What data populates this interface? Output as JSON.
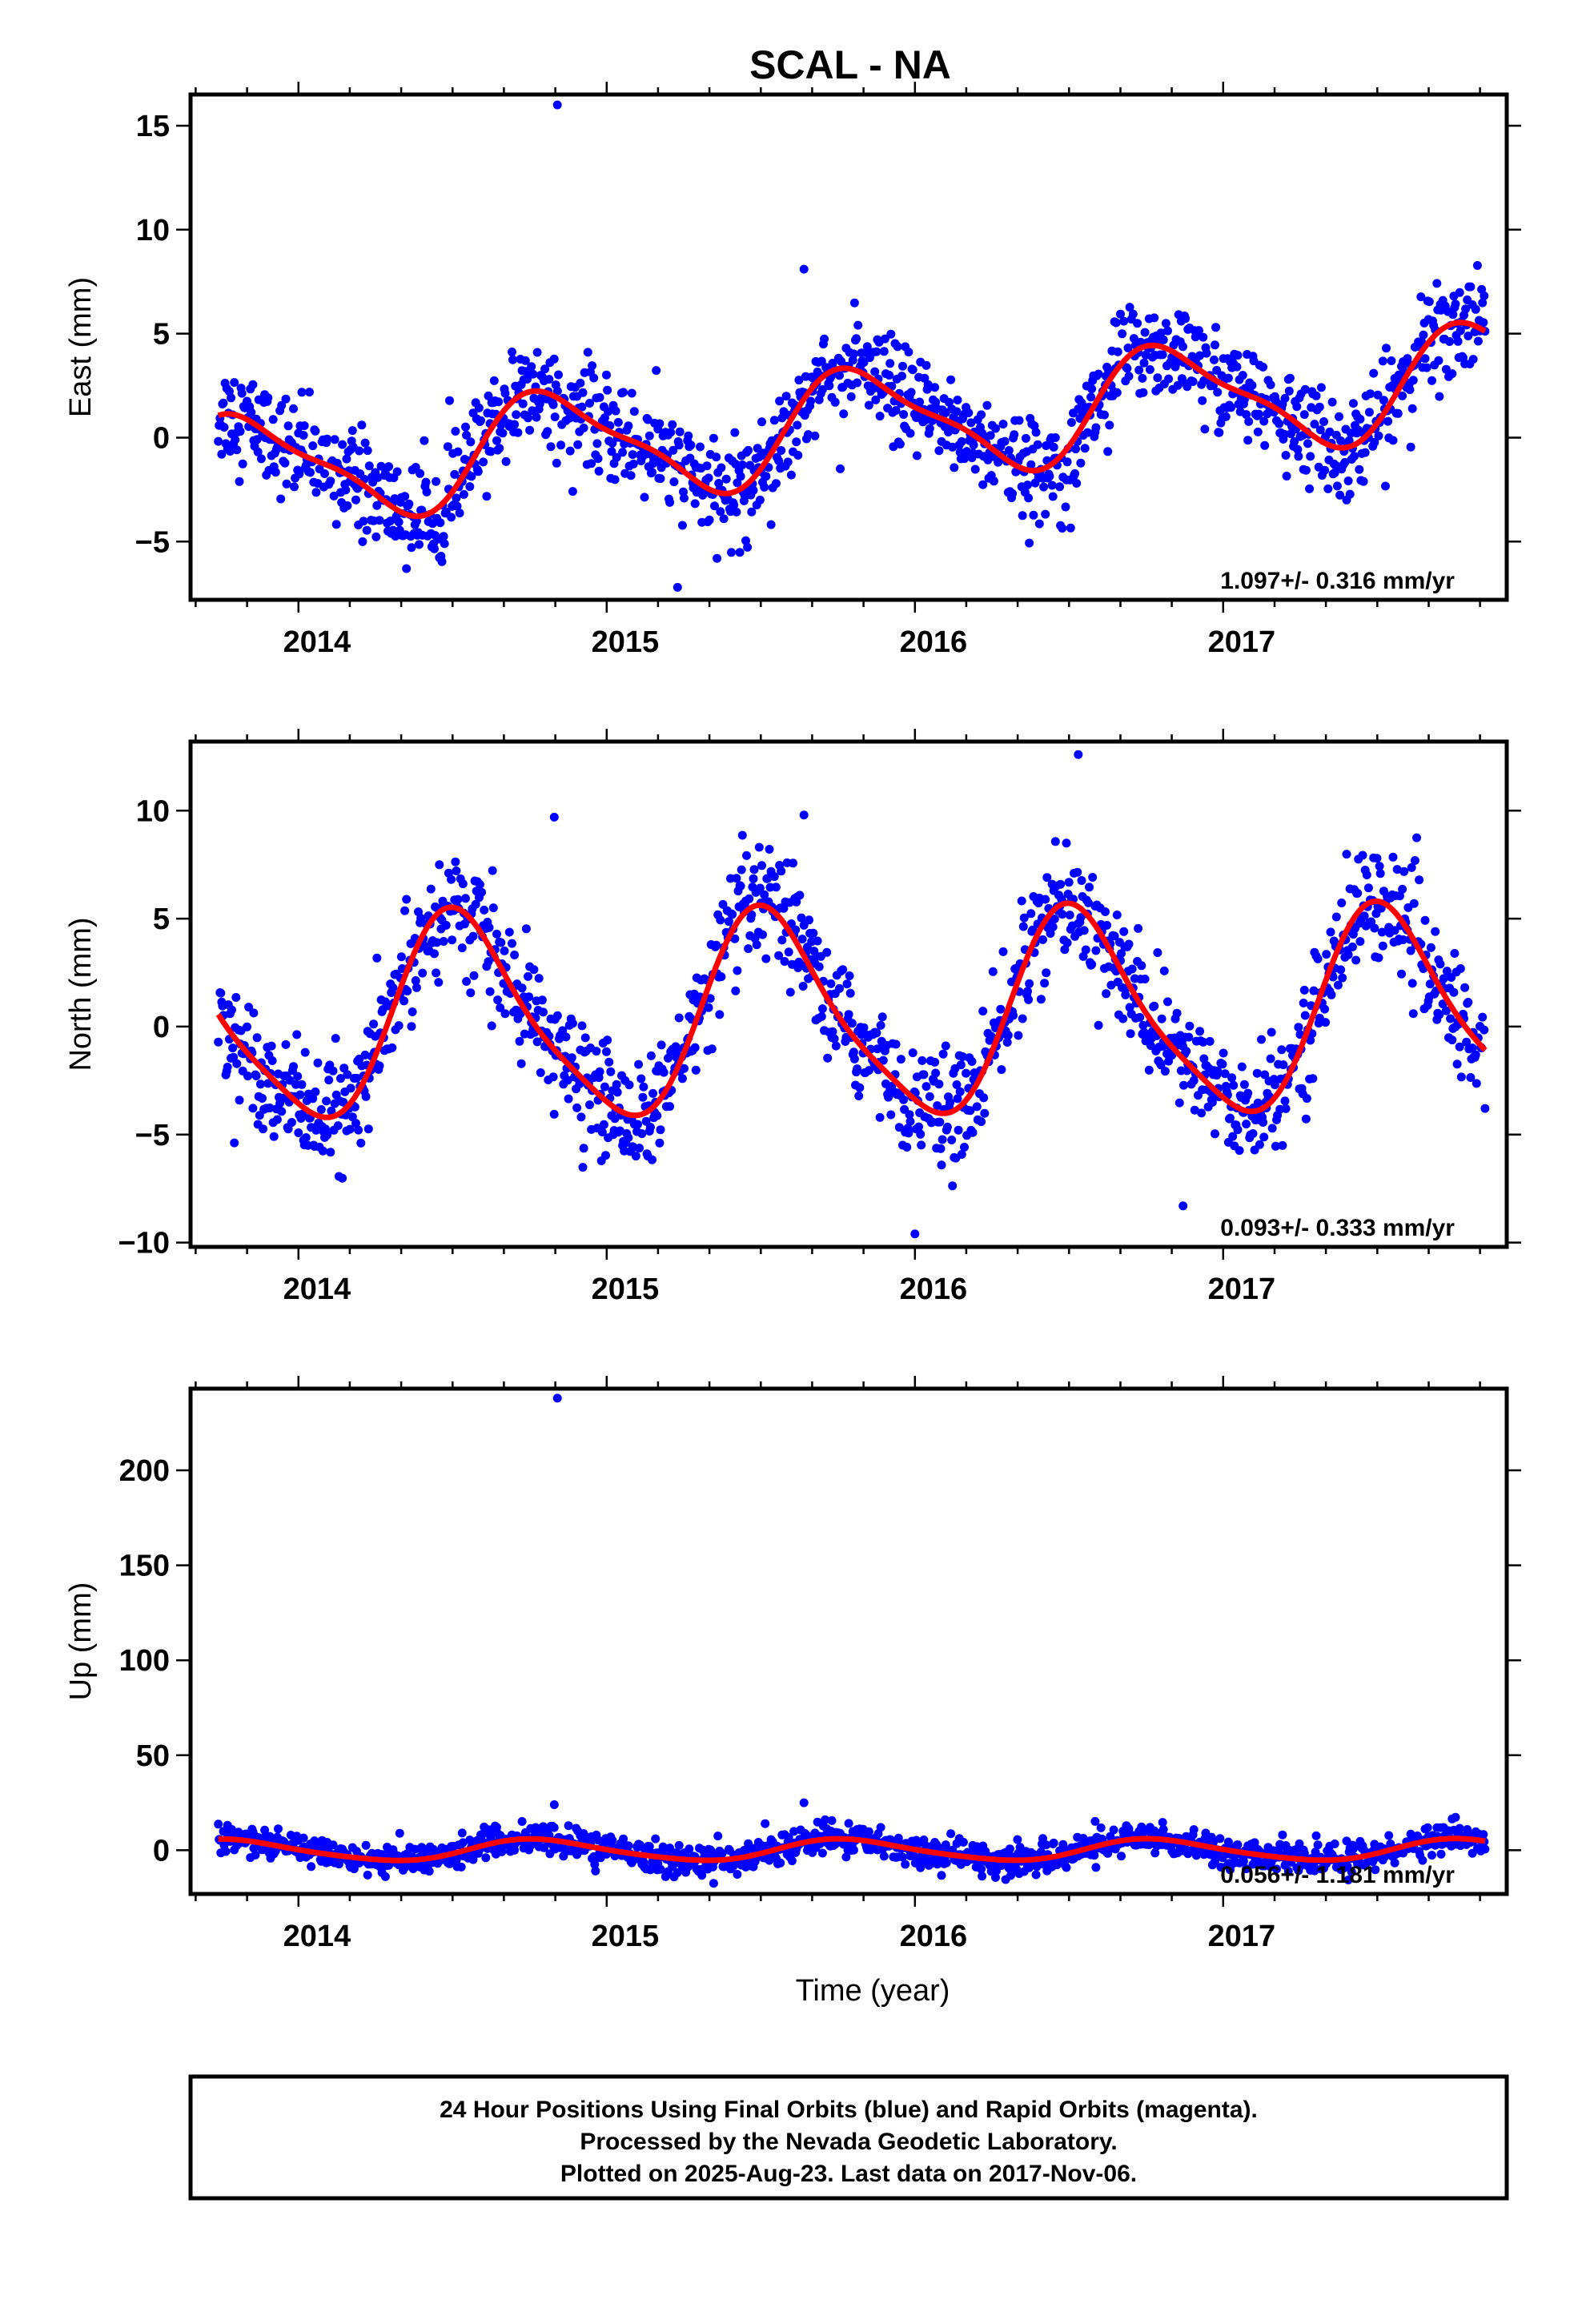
{
  "title": "SCAL - NA",
  "colors": {
    "final_orbits": "#0000ff",
    "fit_curve": "#ff0000",
    "frame": "#000000"
  },
  "footer": {
    "line1": "24 Hour Positions Using Final Orbits (blue) and Rapid Orbits (magenta).",
    "line2": "Processed by the Nevada Geodetic Laboratory.",
    "line3": "Plotted on 2025-Aug-23. Last data on 2017-Nov-06."
  },
  "chart_data": [
    {
      "type": "scatter",
      "component": "east",
      "ylabel": "East (mm)",
      "xlabel": "",
      "xlim": [
        2013.65,
        2017.92
      ],
      "ylim": [
        -7.8,
        16.5
      ],
      "xticks": [
        2014,
        2015,
        2016,
        2017
      ],
      "xtick_labels": [
        "2014",
        "2015",
        "2016",
        "2017"
      ],
      "yticks": [
        -5,
        0,
        5,
        10,
        15
      ],
      "ytick_labels": [
        "−5",
        "0",
        "5",
        "10",
        "15"
      ],
      "rate_label": "1.097+/- 0.316 mm/yr",
      "fit": {
        "t0": 2015.8,
        "rate": 1.097,
        "offset": 0.6,
        "annual_amp": 2.5,
        "annual_phase_year": 2015.83,
        "semiannual_amp": 0.7,
        "semiannual_phase_year": 2015.7
      },
      "scatter_noise": 1.2,
      "outliers": [
        {
          "x": 2014.84,
          "y": 16.0
        },
        {
          "x": 2015.64,
          "y": 8.1
        },
        {
          "x": 2015.23,
          "y": -7.2
        }
      ],
      "x_range": [
        2013.74,
        2017.85
      ]
    },
    {
      "type": "scatter",
      "component": "north",
      "ylabel": "North (mm)",
      "xlabel": "",
      "xlim": [
        2013.65,
        2017.92
      ],
      "ylim": [
        -10.2,
        13.2
      ],
      "xticks": [
        2014,
        2015,
        2016,
        2017
      ],
      "xtick_labels": [
        "2014",
        "2015",
        "2016",
        "2017"
      ],
      "yticks": [
        -10,
        -5,
        0,
        5,
        10
      ],
      "ytick_labels": [
        "−10",
        "−5",
        "0",
        "5",
        "10"
      ],
      "rate_label": "0.093+/- 0.333 mm/yr",
      "fit": {
        "t0": 2015.8,
        "rate": 0.093,
        "offset": 0.4,
        "annual_amp": 4.6,
        "annual_phase_year": 2015.53,
        "semiannual_amp": 0.9,
        "semiannual_phase_year": 2015.45
      },
      "scatter_noise": 1.3,
      "outliers": [
        {
          "x": 2014.83,
          "y": 9.7
        },
        {
          "x": 2015.64,
          "y": 9.8
        },
        {
          "x": 2016.53,
          "y": 12.6
        },
        {
          "x": 2016.0,
          "y": -9.6
        },
        {
          "x": 2016.87,
          "y": -8.3
        }
      ],
      "x_range": [
        2013.74,
        2017.85
      ]
    },
    {
      "type": "scatter",
      "component": "up",
      "ylabel": "Up (mm)",
      "xlabel": "Time (year)",
      "xlim": [
        2013.65,
        2017.92
      ],
      "ylim": [
        -23,
        243
      ],
      "xticks": [
        2014,
        2015,
        2016,
        2017
      ],
      "xtick_labels": [
        "2014",
        "2015",
        "2016",
        "2017"
      ],
      "yticks": [
        0,
        50,
        100,
        150,
        200
      ],
      "ytick_labels": [
        "0",
        "50",
        "100",
        "150",
        "200"
      ],
      "rate_label": "0.056+/- 1.181 mm/yr",
      "fit": {
        "t0": 2015.8,
        "rate": 0.056,
        "offset": 0.0,
        "annual_amp": 5.5,
        "annual_phase_year": 2015.78,
        "semiannual_amp": 0.8,
        "semiannual_phase_year": 2015.7
      },
      "scatter_noise": 4.0,
      "outliers": [
        {
          "x": 2014.84,
          "y": 238
        },
        {
          "x": 2014.83,
          "y": 24
        },
        {
          "x": 2015.64,
          "y": 25
        }
      ],
      "x_range": [
        2013.74,
        2017.85
      ]
    }
  ]
}
